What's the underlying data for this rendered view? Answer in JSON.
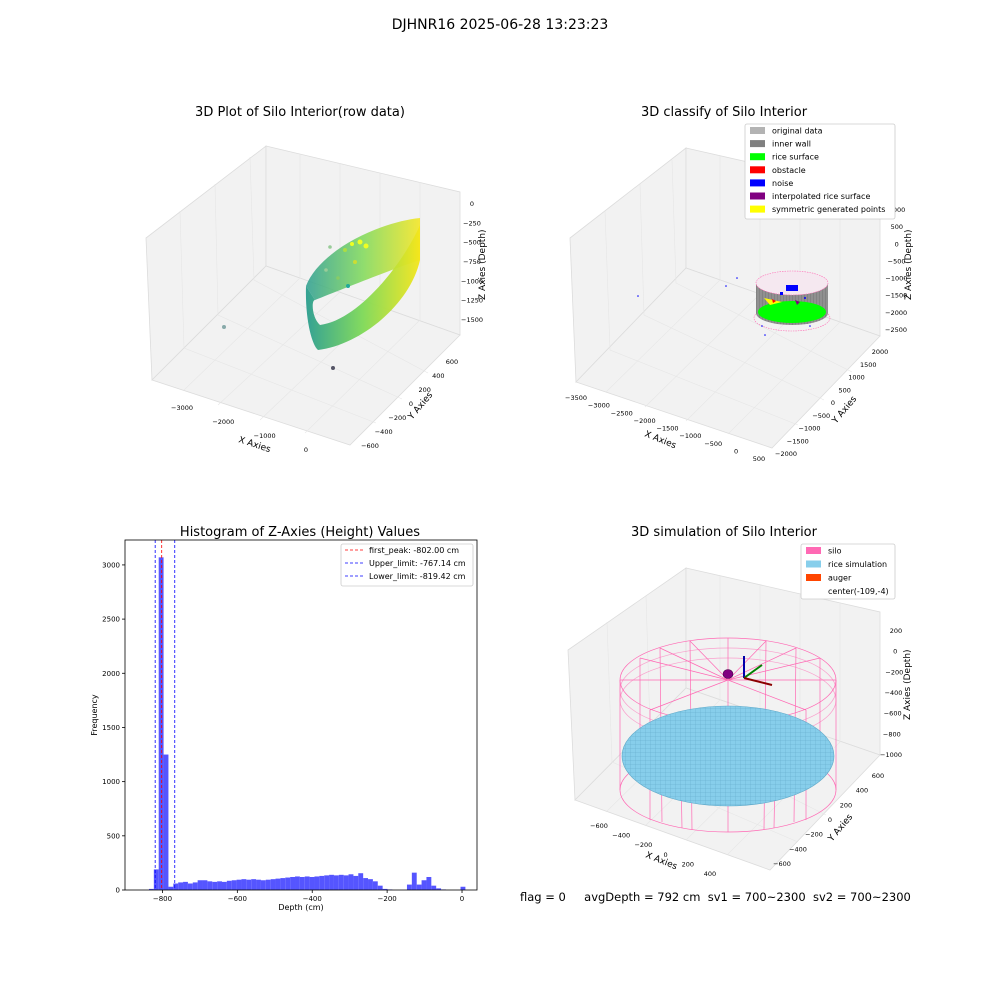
{
  "figure": {
    "suptitle": "DJHNR16 2025-06-28 13:23:23"
  },
  "footer": {
    "flag": "flag = 0",
    "avg_depth": "avgDepth = 792 cm",
    "sv1": "sv1 = 700~2300",
    "sv2": "sv2 = 700~2300"
  },
  "chart_data": [
    {
      "type": "scatter",
      "projection": "3d",
      "title": "3D Plot of Silo Interior(row data)",
      "xlabel": "X Axies",
      "ylabel": "Y Axies",
      "zlabel": "Z Axies (Depth)",
      "xticks": [
        "−3000",
        "−2000",
        "−1000",
        "0"
      ],
      "yticks": [
        "−600",
        "−400",
        "−200",
        "0",
        "200",
        "400",
        "600"
      ],
      "zticks": [
        "−1500",
        "−1250",
        "−1000",
        "−750",
        "−500",
        "−250",
        "0"
      ],
      "colormap": "viridis",
      "colors": {
        "low": "#2a9d8f",
        "mid": "#7ed957",
        "high": "#f5e61a"
      },
      "xlim": [
        -3600,
        700
      ],
      "ylim": [
        -700,
        700
      ],
      "zlim": [
        -1700,
        0
      ]
    },
    {
      "type": "scatter",
      "projection": "3d",
      "title": "3D classify of Silo Interior",
      "xlabel": "X Axies",
      "ylabel": "Y Axies",
      "zlabel": "Z Axies (Depth)",
      "xticks": [
        "−3500",
        "−3000",
        "−2500",
        "−2000",
        "−1500",
        "−1000",
        "−500",
        "0",
        "500"
      ],
      "yticks": [
        "−2000",
        "−1500",
        "−1000",
        "−500",
        "0",
        "500",
        "1000",
        "1500",
        "2000"
      ],
      "zticks": [
        "−2500",
        "−2000",
        "−1500",
        "−1000",
        "−500",
        "0",
        "500",
        "1000"
      ],
      "legend": {
        "position": "top-right",
        "entries": [
          {
            "label": "original data",
            "color": "#b3b3b3"
          },
          {
            "label": "inner wall",
            "color": "#808080"
          },
          {
            "label": "rice surface",
            "color": "#00ff00"
          },
          {
            "label": "obstacle",
            "color": "#ff0000"
          },
          {
            "label": "noise",
            "color": "#0000ff"
          },
          {
            "label": "interpolated rice surface",
            "color": "#800080"
          },
          {
            "label": "symmetric generated points",
            "color": "#ffff00"
          }
        ]
      }
    },
    {
      "type": "bar",
      "title": "Histogram of Z-Axies (Height) Values",
      "xlabel": "Depth (cm)",
      "ylabel": "Frequency",
      "xlim": [
        -900,
        40
      ],
      "ylim": [
        0,
        3230
      ],
      "xticks": [
        -800,
        -600,
        -400,
        -200,
        0
      ],
      "yticks": [
        0,
        500,
        1000,
        1500,
        2000,
        2500,
        3000
      ],
      "bar_color": "#4c4cff",
      "bin_width": 13,
      "bins": [
        {
          "x": -836,
          "v": 10
        },
        {
          "x": -823,
          "v": 190
        },
        {
          "x": -810,
          "v": 3070
        },
        {
          "x": -797,
          "v": 1250
        },
        {
          "x": -784,
          "v": 30
        },
        {
          "x": -771,
          "v": 60
        },
        {
          "x": -758,
          "v": 70
        },
        {
          "x": -745,
          "v": 75
        },
        {
          "x": -732,
          "v": 60
        },
        {
          "x": -719,
          "v": 70
        },
        {
          "x": -706,
          "v": 90
        },
        {
          "x": -693,
          "v": 90
        },
        {
          "x": -680,
          "v": 80
        },
        {
          "x": -667,
          "v": 75
        },
        {
          "x": -654,
          "v": 80
        },
        {
          "x": -641,
          "v": 75
        },
        {
          "x": -628,
          "v": 85
        },
        {
          "x": -615,
          "v": 90
        },
        {
          "x": -602,
          "v": 95
        },
        {
          "x": -589,
          "v": 100
        },
        {
          "x": -576,
          "v": 95
        },
        {
          "x": -563,
          "v": 100
        },
        {
          "x": -550,
          "v": 95
        },
        {
          "x": -537,
          "v": 90
        },
        {
          "x": -524,
          "v": 95
        },
        {
          "x": -511,
          "v": 100
        },
        {
          "x": -498,
          "v": 105
        },
        {
          "x": -485,
          "v": 110
        },
        {
          "x": -472,
          "v": 115
        },
        {
          "x": -459,
          "v": 120
        },
        {
          "x": -446,
          "v": 125
        },
        {
          "x": -433,
          "v": 120
        },
        {
          "x": -420,
          "v": 125
        },
        {
          "x": -407,
          "v": 120
        },
        {
          "x": -394,
          "v": 125
        },
        {
          "x": -381,
          "v": 130
        },
        {
          "x": -368,
          "v": 135
        },
        {
          "x": -355,
          "v": 140
        },
        {
          "x": -342,
          "v": 135
        },
        {
          "x": -329,
          "v": 140
        },
        {
          "x": -316,
          "v": 135
        },
        {
          "x": -303,
          "v": 145
        },
        {
          "x": -290,
          "v": 130
        },
        {
          "x": -277,
          "v": 155
        },
        {
          "x": -264,
          "v": 110
        },
        {
          "x": -251,
          "v": 100
        },
        {
          "x": -238,
          "v": 80
        },
        {
          "x": -225,
          "v": 40
        },
        {
          "x": -212,
          "v": 10
        },
        {
          "x": -199,
          "v": 5
        },
        {
          "x": -147,
          "v": 50
        },
        {
          "x": -134,
          "v": 160
        },
        {
          "x": -121,
          "v": 50
        },
        {
          "x": -108,
          "v": 90
        },
        {
          "x": -95,
          "v": 120
        },
        {
          "x": -82,
          "v": 40
        },
        {
          "x": -69,
          "v": 15
        },
        {
          "x": -56,
          "v": 5
        },
        {
          "x": -4,
          "v": 30
        }
      ],
      "vlines": [
        {
          "x": -802.0,
          "color": "#ff0000",
          "label": "first_peak: -802.00 cm"
        },
        {
          "x": -767.14,
          "color": "#0000ff",
          "label": "Upper_limit: -767.14 cm"
        },
        {
          "x": -819.42,
          "color": "#0000ff",
          "label": "Lower_limit: -819.42 cm"
        }
      ],
      "legend": {
        "position": "top-right"
      }
    },
    {
      "type": "surface",
      "projection": "3d",
      "title": "3D simulation of Silo Interior",
      "xlabel": "X Axies",
      "ylabel": "Y Axies",
      "zlabel": "Z Axies (Depth)",
      "xticks": [
        "−600",
        "−400",
        "−200",
        "0",
        "200",
        "400"
      ],
      "yticks": [
        "−600",
        "−400",
        "−200",
        "0",
        "200",
        "400",
        "600"
      ],
      "zticks": [
        "−1000",
        "−800",
        "−600",
        "−400",
        "−200",
        "0",
        "200"
      ],
      "legend": {
        "position": "top-right",
        "entries": [
          {
            "label": "silo",
            "color": "#ff69b4"
          },
          {
            "label": "rice simulation",
            "color": "#87ceeb"
          },
          {
            "label": "auger",
            "color": "#ff4500"
          },
          {
            "label": "center(-109,-4)",
            "color": "none"
          }
        ]
      }
    }
  ]
}
